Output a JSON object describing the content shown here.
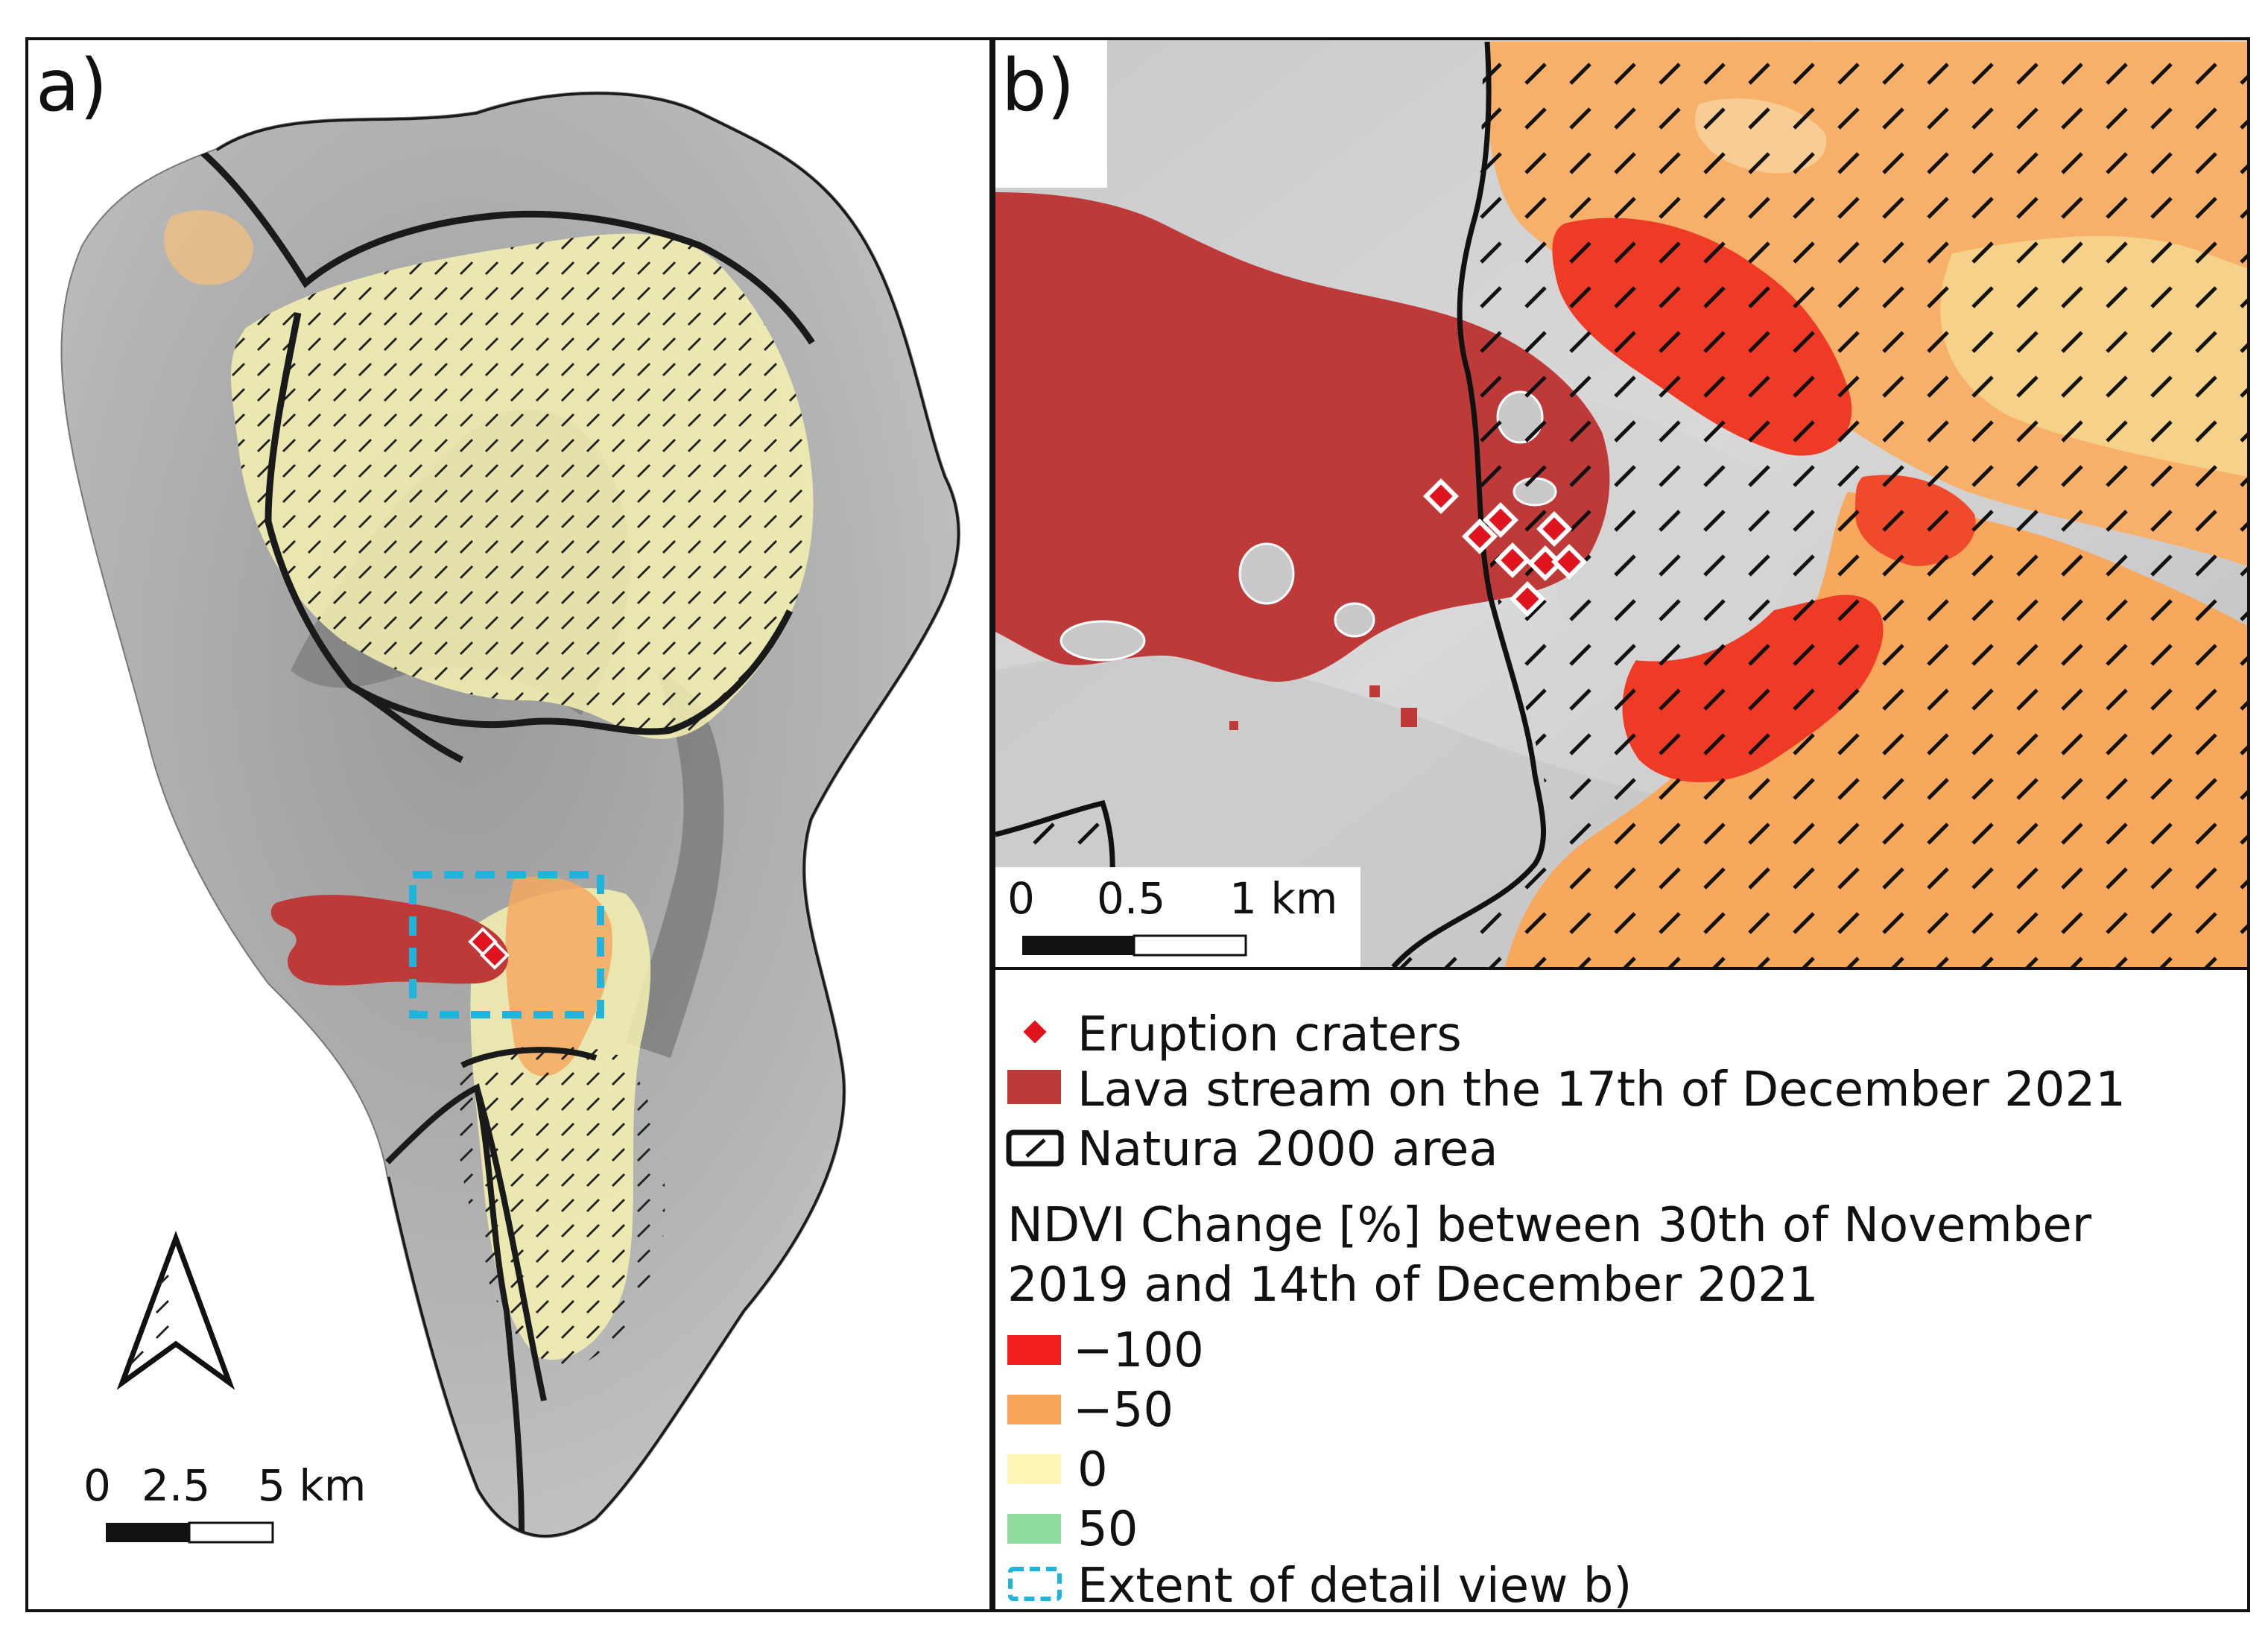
{
  "panels": {
    "a": {
      "label": "a)",
      "scalebar": [
        "0",
        "2.5",
        "5 km"
      ]
    },
    "b": {
      "label": "b)",
      "scalebar": [
        "0",
        "0.5",
        "1 km"
      ]
    }
  },
  "legend": {
    "items": [
      {
        "key": "craters",
        "label": "Eruption craters",
        "icon": "red-diamond-icon"
      },
      {
        "key": "lava",
        "label": "Lava stream on the 17th of December 2021",
        "color": "#be3a38"
      },
      {
        "key": "natura",
        "label": "Natura 2000 area",
        "icon": "hatched-box-icon"
      }
    ],
    "ndvi_title_line1": "NDVI Change [%] between 30th of November",
    "ndvi_title_line2": "2019 and 14th of December 2021",
    "ndvi_classes": [
      {
        "label": "−100",
        "color": "#f21d1d"
      },
      {
        "label": "−50",
        "color": "#f9a65c"
      },
      {
        "label": "0",
        "color": "#fbf6b6"
      },
      {
        "label": "50",
        "color": "#8fdc9c"
      }
    ],
    "extent_label": "Extent of detail view b)",
    "extent_color": "#1eb4dc"
  },
  "colors": {
    "lava": "#be3a38",
    "crater": "#e0141e",
    "border": "#111111",
    "hillshade": "#b8b8b8"
  }
}
